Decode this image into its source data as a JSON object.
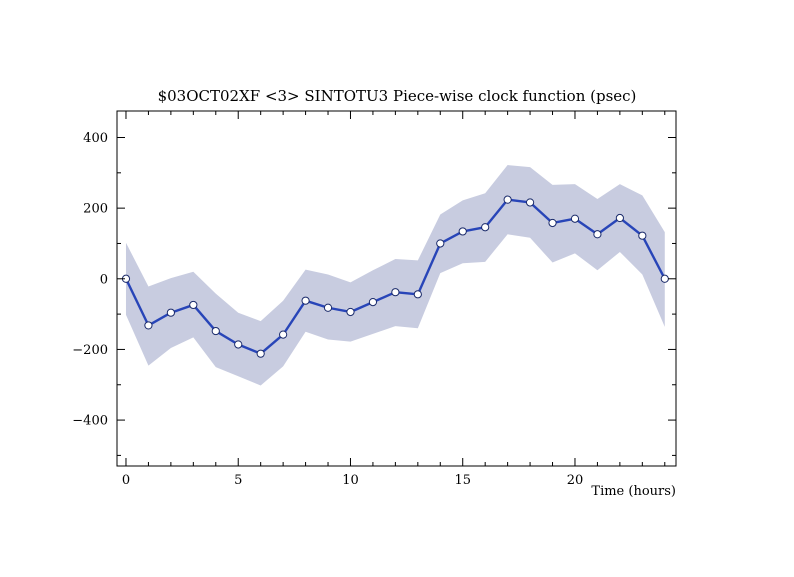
{
  "chart_data": {
    "type": "line",
    "title": "$03OCT02XF <3>  SINTOTU3  Piece-wise clock function (psec)",
    "xlabel": "Time (hours)",
    "ylabel": "",
    "xlim": [
      -0.4,
      24.5
    ],
    "ylim": [
      -530,
      475
    ],
    "x_ticks": [
      0,
      5,
      10,
      15,
      20
    ],
    "x_tick_labels": [
      "0",
      "5",
      "10",
      "15",
      "20"
    ],
    "y_ticks": [
      400,
      200,
      0,
      -200,
      -400
    ],
    "y_tick_labels": [
      "400",
      "200",
      "0",
      "−200",
      "−400"
    ],
    "grid": false,
    "colors": {
      "line": "#2845b8",
      "band": "#c8cce0",
      "marker_fill": "#ffffff",
      "frame": "#000000"
    },
    "series": [
      {
        "x": [
          0,
          1,
          2,
          3,
          4,
          5,
          6,
          7,
          8,
          9,
          10,
          11,
          12,
          13,
          14,
          15,
          16,
          17,
          18,
          19,
          20,
          21,
          22,
          23,
          24
        ],
        "values": [
          0,
          -132,
          -96,
          -74,
          -148,
          -186,
          -212,
          -158,
          -62,
          -82,
          -94,
          -66,
          -38,
          -44,
          100,
          134,
          146,
          224,
          216,
          158,
          170,
          126,
          172,
          122,
          0
        ],
        "upper": [
          102,
          -22,
          2,
          20,
          -42,
          -96,
          -120,
          -62,
          26,
          12,
          -10,
          24,
          56,
          52,
          182,
          222,
          242,
          322,
          316,
          266,
          268,
          226,
          268,
          236,
          132
        ],
        "lower": [
          -102,
          -246,
          -196,
          -166,
          -250,
          -276,
          -302,
          -248,
          -150,
          -172,
          -178,
          -156,
          -134,
          -140,
          16,
          44,
          48,
          126,
          116,
          46,
          72,
          24,
          76,
          12,
          -136
        ]
      }
    ]
  }
}
